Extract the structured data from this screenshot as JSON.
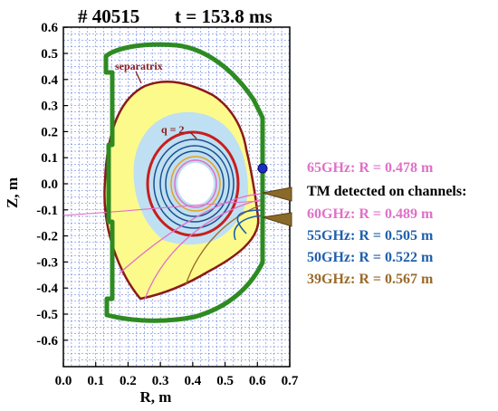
{
  "title": {
    "shot": "# 40515",
    "time": "t = 153.8 ms"
  },
  "axes": {
    "xlabel": "R, m",
    "ylabel": "Z, m",
    "xlim": [
      0.0,
      0.7
    ],
    "ylim": [
      -0.7,
      0.65
    ],
    "xticks": [
      "0.0",
      "0.1",
      "0.2",
      "0.3",
      "0.4",
      "0.5",
      "0.6",
      "0.7"
    ],
    "yticks": [
      "0.6",
      "0.5",
      "0.4",
      "0.3",
      "0.2",
      "0.1",
      "0.0",
      "-0.1",
      "-0.2",
      "-0.3",
      "-0.4",
      "-0.5",
      "-0.6"
    ],
    "grid": "dashed blue"
  },
  "annotations": {
    "separatrix": "separatrix",
    "q_surface": "q = 2"
  },
  "legend": {
    "ch65": "65GHz: R = 0.478 m",
    "header": "TM detected on channels:",
    "ch60": "60GHz: R = 0.489 m",
    "ch55": "55GHz: R = 0.505 m",
    "ch50": "50GHz: R = 0.522 m",
    "ch39": "39GHz: R = 0.567 m"
  },
  "colors": {
    "wall": "#2e8b22",
    "separatrix": "#8b1a1a",
    "plasma_fill": "#fdfa8c",
    "core_fill": "#bfe0f2",
    "q2_surface": "#c81e1e",
    "flux_lines": "#1c4f8f",
    "ch65": "#e070c8",
    "ch60": "#e070c8",
    "ch55": "#1f5fae",
    "ch50": "#1f5fae",
    "ch39": "#9a6a2a",
    "probe": "#1a2fc8",
    "antenna": "#8a6a2a",
    "grid": "#4a6ad8"
  }
}
